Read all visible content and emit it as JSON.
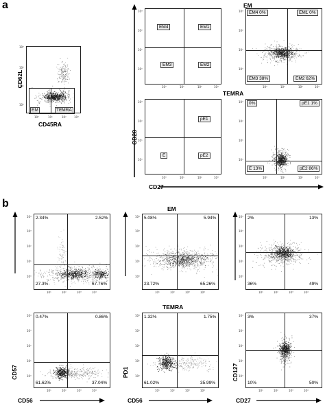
{
  "panel_a": {
    "letter": "a",
    "gating_plot": {
      "ylabel": "CD62L",
      "xlabel": "CD45RA",
      "gate_em": "EM",
      "gate_temra": "TEMRA",
      "yticks": [
        "10³",
        "10²",
        "10¹",
        "10⁰"
      ],
      "xticks": [
        "10⁰",
        "10¹",
        "10²",
        "10³"
      ]
    },
    "em_title": "EM",
    "temra_title": "TEMRA",
    "em_template": {
      "q_tl": "EM4",
      "q_tr": "EM1",
      "q_bl": "EM3",
      "q_br": "EM2"
    },
    "em_data": {
      "q_tl": "EM4 0%",
      "q_tr": "EM1 0%",
      "q_bl": "EM3 38%",
      "q_br": "EM2 62%"
    },
    "temra_template": {
      "q_tr": "pE1",
      "q_bl": "E",
      "q_br": "pE2"
    },
    "temra_data": {
      "q_tl": "0%",
      "q_tr": "pE1 1%",
      "q_bl": "E 13%",
      "q_br": "pE2 86%"
    },
    "ylabel": "CD28",
    "xlabel": "CD27",
    "ticks": {
      "y": [
        "10³",
        "10²",
        "10¹",
        "10⁰"
      ],
      "x": [
        "10⁰",
        "10¹",
        "10²",
        "10³"
      ]
    }
  },
  "panel_b": {
    "letter": "b",
    "em_title": "EM",
    "temra_title": "TEMRA",
    "col1": {
      "ylabel": "CD57",
      "xlabel": "CD56",
      "em": {
        "q_tl": "2.34%",
        "q_tr": "2.52%",
        "q_bl": "27.3%",
        "q_br": "67.76%"
      },
      "temra": {
        "q_tl": "0.47%",
        "q_tr": "0.86%",
        "q_bl": "61.62%",
        "q_br": "37.04%"
      }
    },
    "col2": {
      "ylabel": "PD1",
      "xlabel": "CD56",
      "em": {
        "q_tl": "5.08%",
        "q_tr": "5.94%",
        "q_bl": "23.72%",
        "q_br": "65.26%"
      },
      "temra": {
        "q_tl": "1.32%",
        "q_tr": "1.75%",
        "q_bl": "61.02%",
        "q_br": "35.99%"
      }
    },
    "col3": {
      "ylabel": "CD127",
      "xlabel": "CD27",
      "em": {
        "q_tl": "2%",
        "q_tr": "13%",
        "q_bl": "36%",
        "q_br": "49%"
      },
      "temra": {
        "q_tl": "3%",
        "q_tr": "37%",
        "q_bl": "10%",
        "q_br": "50%"
      }
    },
    "ticks": {
      "y": [
        "10⁴",
        "10³",
        "10²",
        "10¹",
        "10⁰"
      ],
      "x": [
        "10⁰",
        "10¹",
        "10²",
        "10³",
        "10⁴"
      ]
    }
  },
  "colors": {
    "ink": "#000000",
    "dots": "#1a1a1a",
    "box_fill": "#eeeeee"
  }
}
